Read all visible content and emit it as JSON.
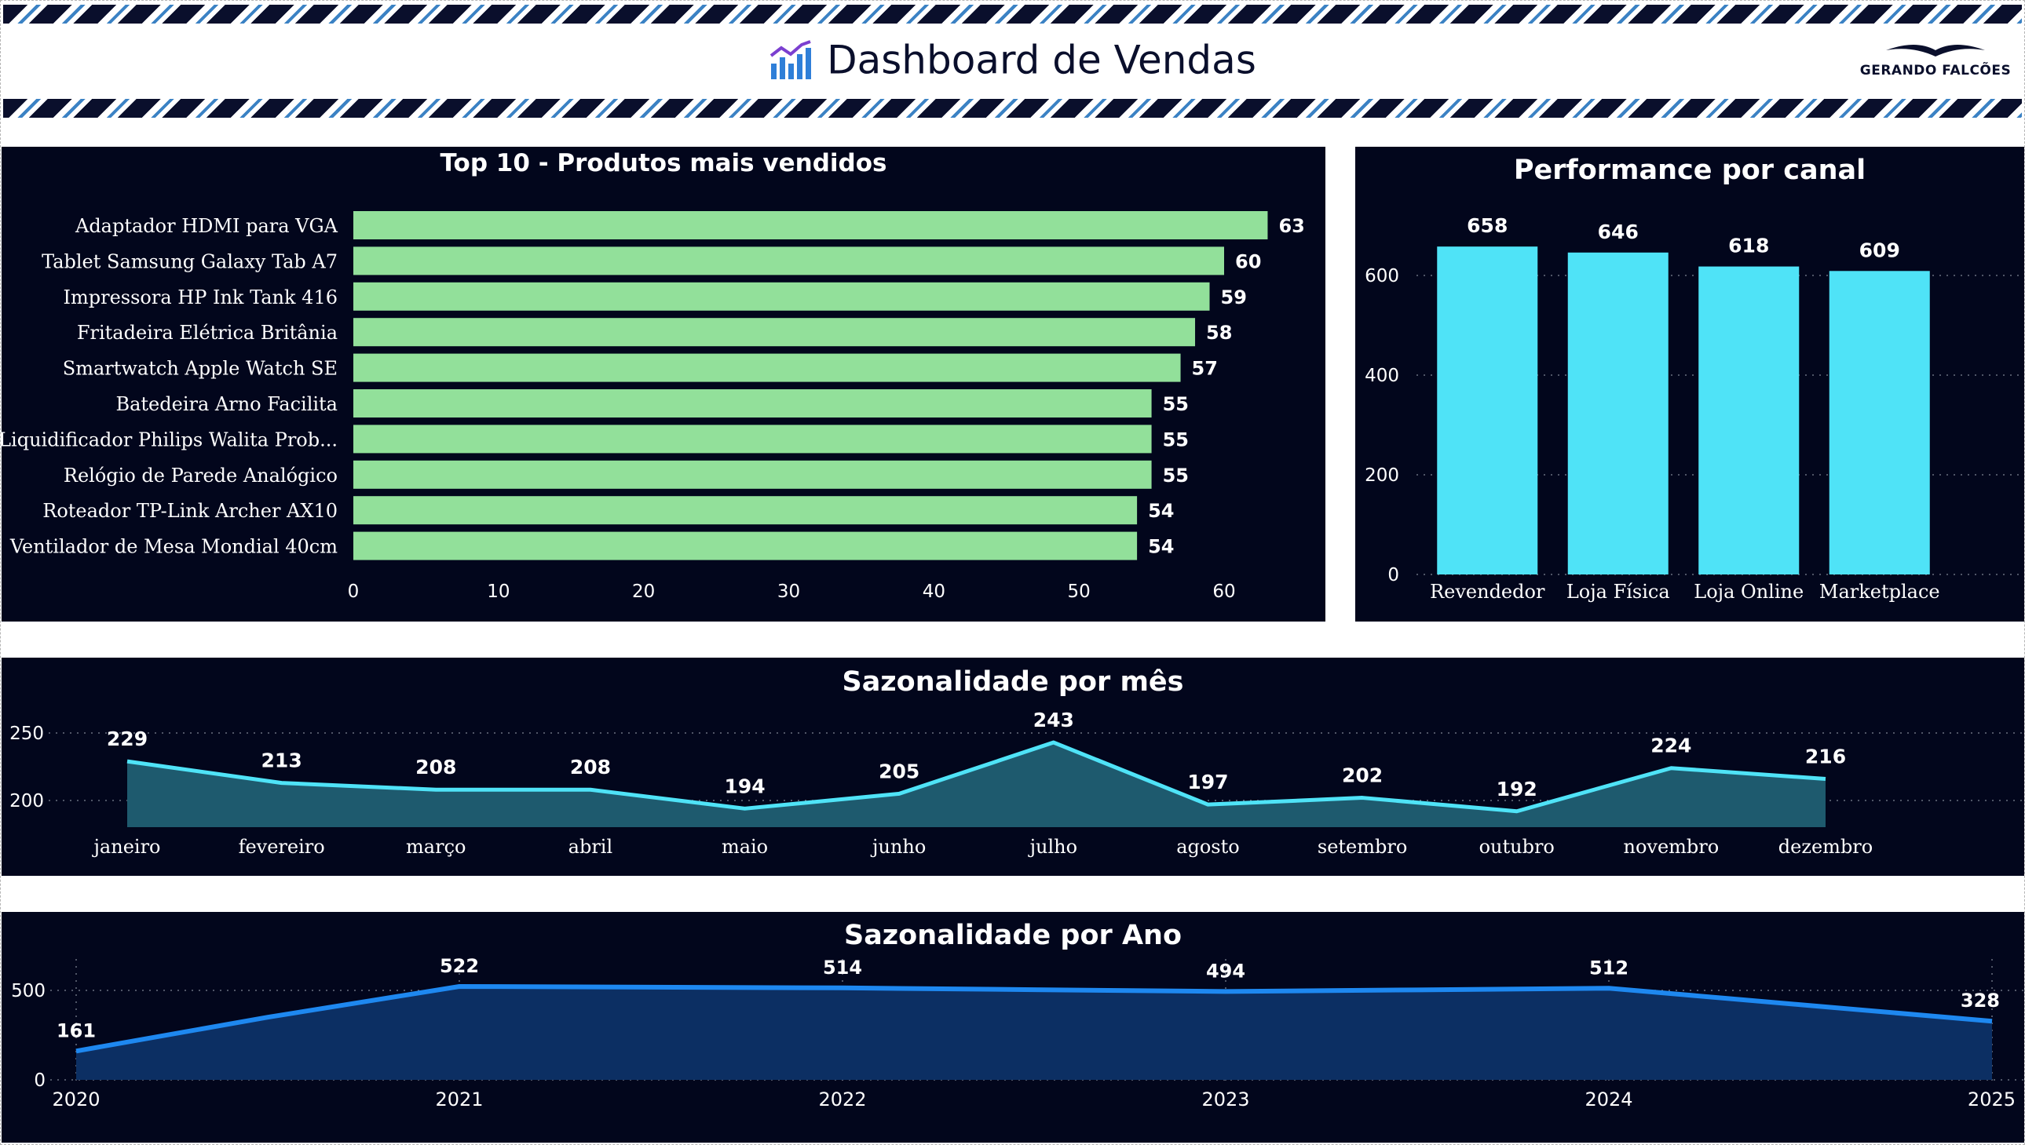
{
  "header": {
    "title": "Dashboard de Vendas",
    "icon": "bar-chart-icon",
    "logo_text": "GERANDO FALCÕES",
    "logo_icon": "falcon-wings-icon"
  },
  "colors": {
    "panel_bg": "#02061c",
    "top10_bar": "#92e09a",
    "canal_bar": "#4fe3f7",
    "mes_line": "#4fe3f7",
    "mes_area": "#1e5a6e",
    "ano_line": "#1e88f0",
    "ano_area": "#0c2f63"
  },
  "chart_data": [
    {
      "id": "top10",
      "type": "bar",
      "orientation": "horizontal",
      "title": "Top 10 - Produtos mais vendidos",
      "categories": [
        "Adaptador HDMI para VGA",
        "Tablet Samsung Galaxy Tab A7",
        "Impressora HP Ink Tank 416",
        "Fritadeira Elétrica Britânia",
        "Smartwatch Apple Watch SE",
        "Batedeira Arno Facilita",
        "Liquidificador Philips Walita Prob...",
        "Relógio de Parede Analógico",
        "Roteador TP-Link Archer AX10",
        "Ventilador de Mesa Mondial 40cm"
      ],
      "values": [
        63,
        60,
        59,
        58,
        57,
        55,
        55,
        55,
        54,
        54
      ],
      "xlim": [
        0,
        65
      ],
      "xticks": [
        0,
        10,
        20,
        30,
        40,
        50,
        60
      ],
      "grid": false,
      "data_labels": true
    },
    {
      "id": "canal",
      "type": "bar",
      "title": "Performance por canal",
      "categories": [
        "Revendedor",
        "Loja Física",
        "Loja Online",
        "Marketplace"
      ],
      "values": [
        658,
        646,
        618,
        609
      ],
      "ylim": [
        0,
        700
      ],
      "yticks": [
        0,
        200,
        400,
        600
      ],
      "grid": true,
      "data_labels": true
    },
    {
      "id": "mes",
      "type": "area",
      "title": "Sazonalidade por mês",
      "categories": [
        "janeiro",
        "fevereiro",
        "março",
        "abril",
        "maio",
        "junho",
        "julho",
        "agosto",
        "setembro",
        "outubro",
        "novembro",
        "dezembro"
      ],
      "values": [
        229,
        213,
        208,
        208,
        194,
        205,
        243,
        197,
        202,
        192,
        224,
        216
      ],
      "ylim": [
        180,
        258
      ],
      "yticks": [
        200,
        250
      ],
      "grid": true,
      "data_labels": true
    },
    {
      "id": "ano",
      "type": "area",
      "title": "Sazonalidade por Ano",
      "x": [
        2020,
        2020.5,
        2021,
        2021.5,
        2022,
        2022.5,
        2023,
        2023.5,
        2024,
        2024.5,
        2025
      ],
      "values": [
        161,
        350,
        522,
        518,
        514,
        504,
        494,
        503,
        512,
        420,
        328
      ],
      "labeled_points": [
        {
          "x": 2020,
          "label": "161"
        },
        {
          "x": 2021,
          "label": "522"
        },
        {
          "x": 2022,
          "label": "514"
        },
        {
          "x": 2023,
          "label": "494"
        },
        {
          "x": 2024,
          "label": "512"
        },
        {
          "x": 2025,
          "label": "328"
        }
      ],
      "xticks": [
        2020,
        2021,
        2022,
        2023,
        2024,
        2025
      ],
      "ylim": [
        0,
        560
      ],
      "yticks": [
        0,
        500
      ],
      "grid": true,
      "data_labels": true
    }
  ]
}
